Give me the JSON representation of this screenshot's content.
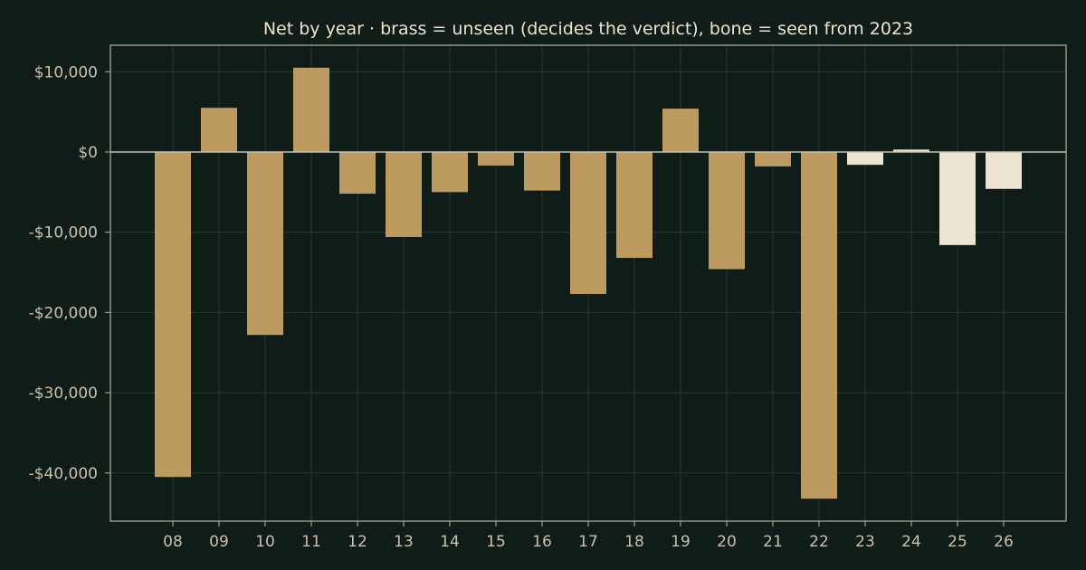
{
  "chart_data": {
    "type": "bar",
    "title": "Net by year  ·  brass = unseen (decides the verdict), bone = seen from 2023",
    "xlabel": "",
    "ylabel": "",
    "categories": [
      "08",
      "09",
      "10",
      "11",
      "12",
      "13",
      "14",
      "15",
      "16",
      "17",
      "18",
      "19",
      "20",
      "21",
      "22",
      "23",
      "24",
      "25",
      "26"
    ],
    "values": [
      -40500,
      5500,
      -22800,
      10500,
      -5200,
      -10600,
      -5000,
      -1700,
      -4800,
      -17700,
      -13200,
      5400,
      -14600,
      -1800,
      -43200,
      -1600,
      300,
      -11600,
      -4600
    ],
    "series": [
      {
        "name": "unseen",
        "color": "#bd9a60",
        "categories": [
          "08",
          "09",
          "10",
          "11",
          "12",
          "13",
          "14",
          "15",
          "16",
          "17",
          "18",
          "19",
          "20",
          "21",
          "22"
        ]
      },
      {
        "name": "seen",
        "color": "#ebe4d3",
        "categories": [
          "23",
          "24",
          "25",
          "26"
        ]
      }
    ],
    "yticks": [
      10000,
      0,
      -10000,
      -20000,
      -30000,
      -40000
    ],
    "ytick_labels": [
      "$10,000",
      "$0",
      "-$10,000",
      "-$20,000",
      "-$30,000",
      "-$40,000"
    ],
    "ylim": [
      -46000,
      13300
    ],
    "grid": true,
    "legend": "none",
    "colors": {
      "background": "#0f1c17",
      "brass": "#bd9a60",
      "bone": "#ebe4d3",
      "axis": "#b8b29f",
      "text": "#c9c1ae"
    }
  }
}
